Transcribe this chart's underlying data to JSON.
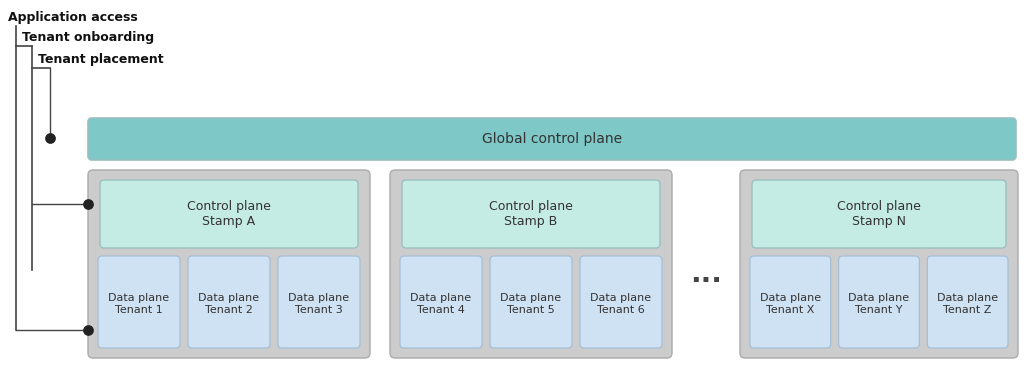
{
  "fig_width": 10.26,
  "fig_height": 3.76,
  "dpi": 100,
  "bg_color": "#ffffff",
  "global_cp_color": "#7ec8c8",
  "global_cp_border": "#9bbfbf",
  "stamp_bg_color": "#cccccc",
  "stamp_border_color": "#aaaaaa",
  "control_plane_color": "#c5ebe5",
  "control_plane_border": "#9bbfbf",
  "data_plane_color": "#cfe2f3",
  "data_plane_border": "#a0bcd4",
  "global_cp_label": "Global control plane",
  "stamps": [
    {
      "label": "Control plane\nStamp A",
      "tenants": [
        "Data plane\nTenant 1",
        "Data plane\nTenant 2",
        "Data plane\nTenant 3"
      ]
    },
    {
      "label": "Control plane\nStamp B",
      "tenants": [
        "Data plane\nTenant 4",
        "Data plane\nTenant 5",
        "Data plane\nTenant 6"
      ]
    },
    {
      "label": "Control plane\nStamp N",
      "tenants": [
        "Data plane\nTenant X",
        "Data plane\nTenant Y",
        "Data plane\nTenant Z"
      ]
    }
  ],
  "dot_color": "#222222",
  "line_color": "#444444",
  "ellipsis_label": "...",
  "label_app_access": "Application access",
  "label_tenant_onboard": "Tenant onboarding",
  "label_tenant_place": "Tenant placement"
}
